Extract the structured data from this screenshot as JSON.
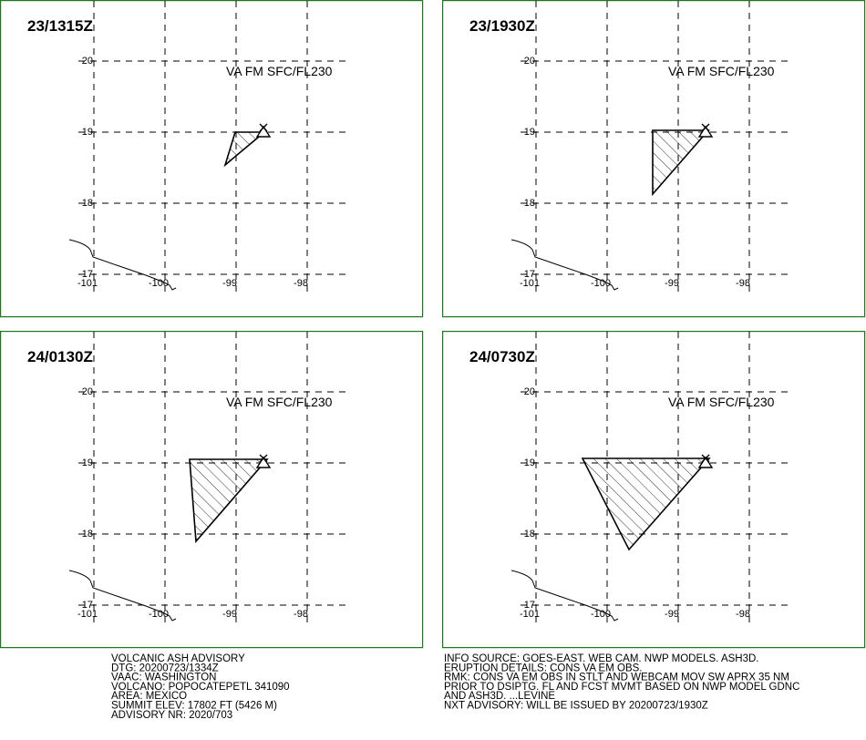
{
  "panels": [
    {
      "time": "23/1315Z",
      "level": "VA FM SFC/FL230"
    },
    {
      "time": "23/1930Z",
      "level": "VA FM SFC/FL230"
    },
    {
      "time": "24/0130Z",
      "level": "VA FM SFC/FL230"
    },
    {
      "time": "24/0730Z",
      "level": "VA FM SFC/FL230"
    }
  ],
  "lat_labels": [
    "20",
    "19",
    "18",
    "17"
  ],
  "lon_labels": [
    "-101",
    "-100",
    "-99",
    "-98"
  ],
  "advisory_left": [
    "VOLCANIC ASH ADVISORY",
    "DTG: 20200723/1334Z",
    "VAAC: WASHINGTON",
    "VOLCANO: POPOCATEPETL 341090",
    "AREA: MEXICO",
    "SUMMIT ELEV: 17802 FT (5426 M)",
    "ADVISORY NR: 2020/703"
  ],
  "advisory_right": [
    "INFO SOURCE: GOES-EAST. WEB CAM. NWP MODELS. ASH3D.",
    "ERUPTION DETAILS: CONS VA EM OBS.",
    "RMK: CONS VA EM OBS IN STLT AND WEBCAM MOV SW APRX 35 NM",
    "PRIOR TO DSIPTG. FL AND FCST MVMT BASED ON NWP MODEL GDNC",
    "AND ASH3D. ...LEVINE",
    "NXT ADVISORY: WILL BE ISSUED BY 20200723/1930Z"
  ]
}
